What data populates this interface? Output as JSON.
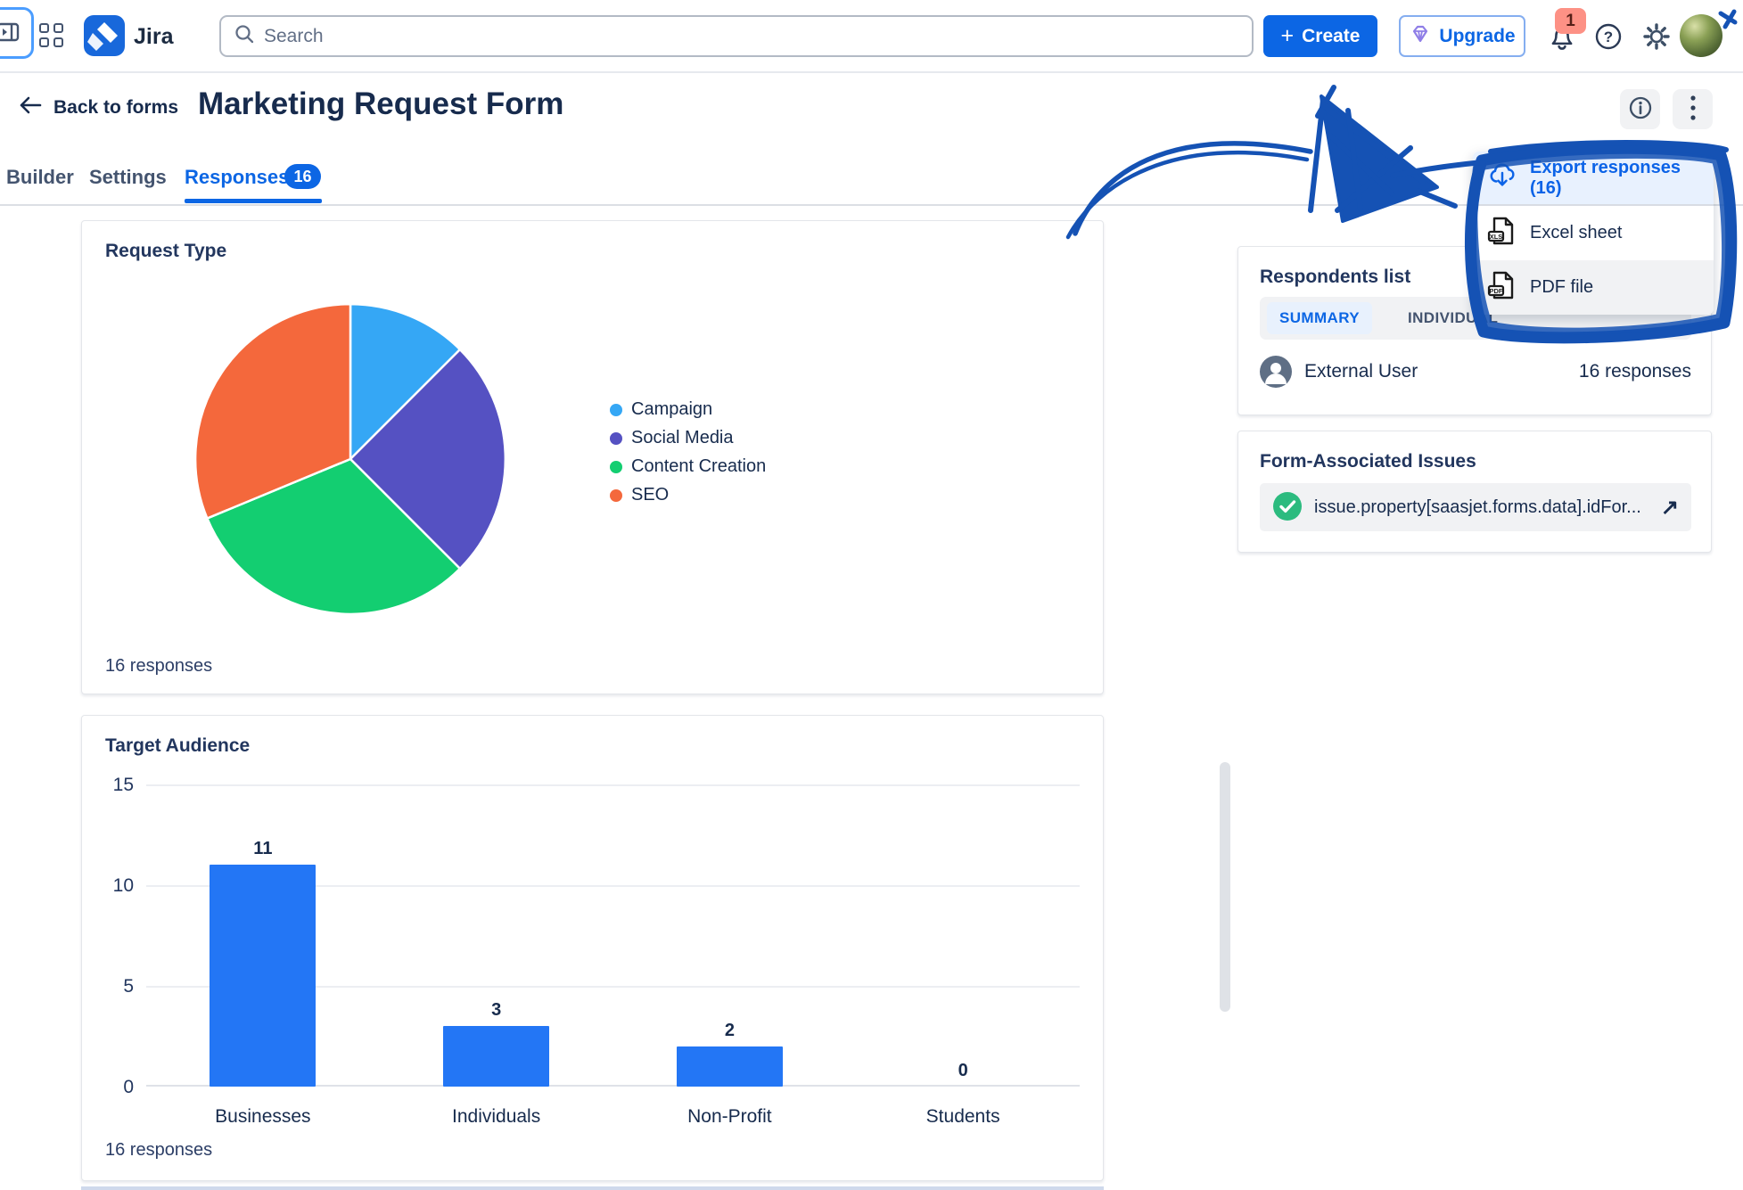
{
  "topbar": {
    "brand": "Jira",
    "search_placeholder": "Search",
    "create_label": "Create",
    "upgrade_label": "Upgrade",
    "notification_count": "1"
  },
  "header": {
    "back_label": "Back to forms",
    "title": "Marketing Request Form"
  },
  "tabs": {
    "builder": "Builder",
    "settings": "Settings",
    "responses": "Responses",
    "responses_count": "16"
  },
  "export_menu": {
    "export_label": "Export responses (16)",
    "excel_label": "Excel sheet",
    "pdf_label": "PDF file",
    "excel_icon_label": "XLS",
    "pdf_icon_label": "PDF"
  },
  "respondents": {
    "title": "Respondents list",
    "tab_summary": "SUMMARY",
    "tab_individual": "INDIVIDUAL",
    "user_name": "External User",
    "user_responses": "16 responses"
  },
  "issues": {
    "title": "Form-Associated Issues",
    "item_text": "issue.property[saasjet.forms.data].idFor...",
    "external_link_glyph": "↗"
  },
  "colors": {
    "accent_blue": "#0c66e4",
    "annotation_blue": "#1552b4",
    "navy_text": "#172b4d"
  },
  "chart_data": [
    {
      "type": "pie",
      "title": "Request Type",
      "categories": [
        "Campaign",
        "Social Media",
        "Content Creation",
        "SEO"
      ],
      "values": [
        2,
        4,
        5,
        5
      ],
      "colors": [
        "#35a7f5",
        "#5551c2",
        "#13ce71",
        "#f4683c"
      ],
      "legend_position": "right",
      "footer": "16 responses"
    },
    {
      "type": "bar",
      "title": "Target Audience",
      "categories": [
        "Businesses",
        "Individuals",
        "Non-Profit",
        "Students"
      ],
      "values": [
        11,
        3,
        2,
        0
      ],
      "yticks": [
        "15",
        "10",
        "5",
        "0"
      ],
      "ylim": [
        0,
        15
      ],
      "bar_color": "#2376f5",
      "grid": true,
      "footer": "16 responses"
    }
  ]
}
